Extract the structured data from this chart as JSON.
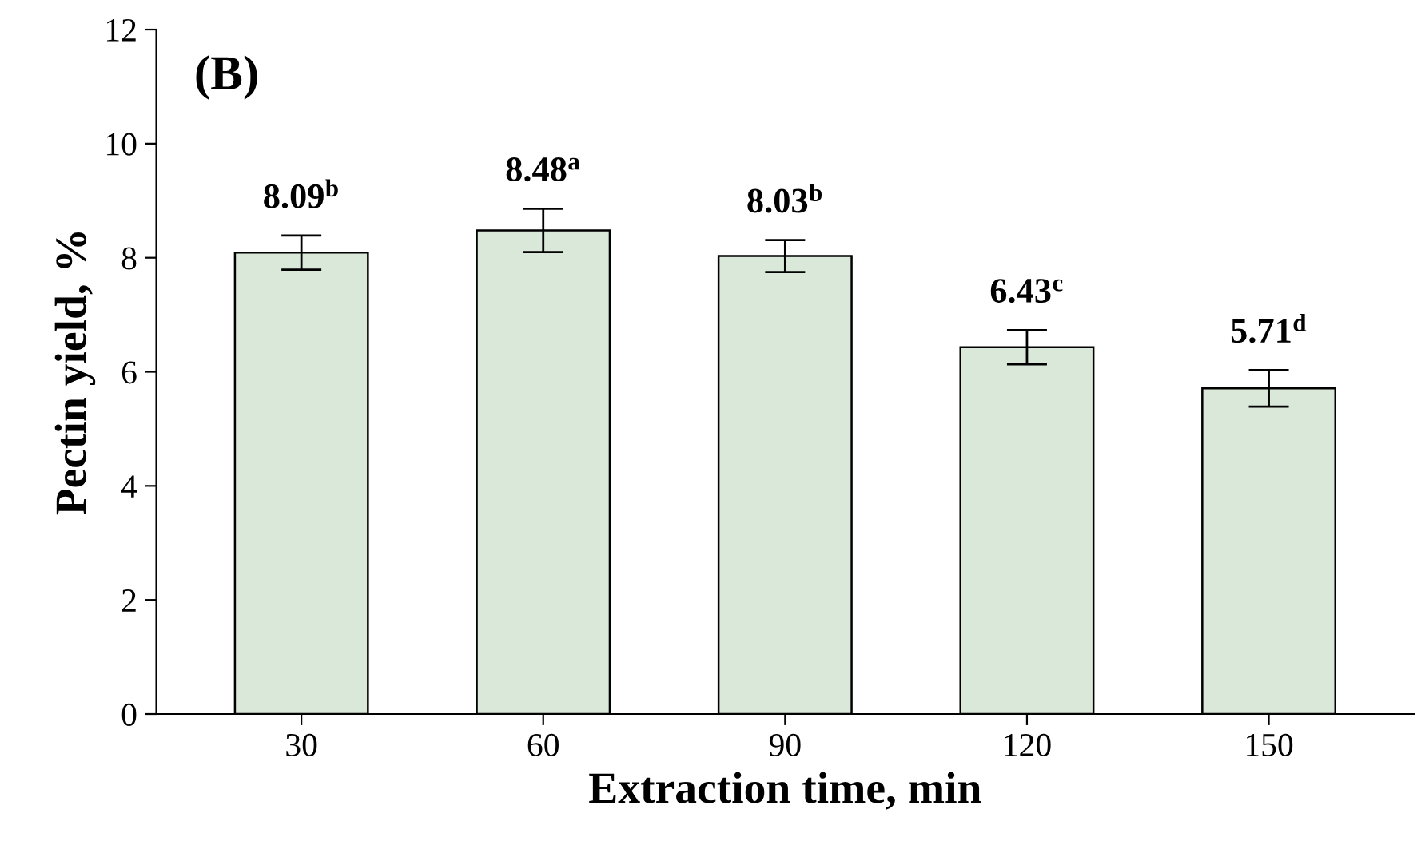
{
  "chart_data": {
    "type": "bar",
    "xlabel": "Extraction time, min",
    "ylabel": "Pectin yield, %",
    "annotations": [
      "(B)"
    ],
    "categories": [
      "30",
      "60",
      "90",
      "120",
      "150"
    ],
    "values": [
      8.09,
      8.48,
      8.03,
      6.43,
      5.71
    ],
    "errors": [
      0.3,
      0.38,
      0.28,
      0.3,
      0.32
    ],
    "value_labels": [
      "8.09$^{b}$",
      "8.48$^{a}$",
      "8.03$^{b}$",
      "6.43$^{ c}$",
      "5.71$^{d}$"
    ],
    "color": "#d9e8d9",
    "ylim": [
      0,
      12
    ],
    "yticks": [
      0,
      2,
      4,
      6,
      8,
      10,
      12
    ],
    "grid": false,
    "legend": false
  }
}
